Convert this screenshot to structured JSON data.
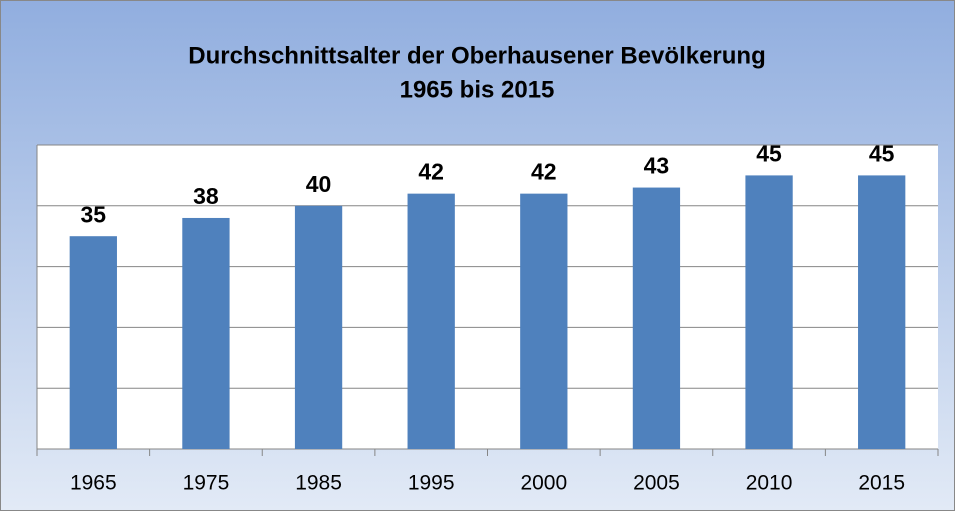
{
  "chart_data": {
    "type": "bar",
    "title": "Durchschnittsalter der Oberhausener Bevölkerung",
    "subtitle": "1965 bis 2015",
    "categories": [
      "1965",
      "1975",
      "1985",
      "1995",
      "2000",
      "2005",
      "2010",
      "2015"
    ],
    "values": [
      35,
      38,
      40,
      42,
      42,
      43,
      45,
      45
    ],
    "color": "#4f81bd",
    "ylim": [
      0,
      50
    ],
    "yticks": [
      0,
      10,
      20,
      30,
      40,
      50
    ],
    "grid": true
  }
}
